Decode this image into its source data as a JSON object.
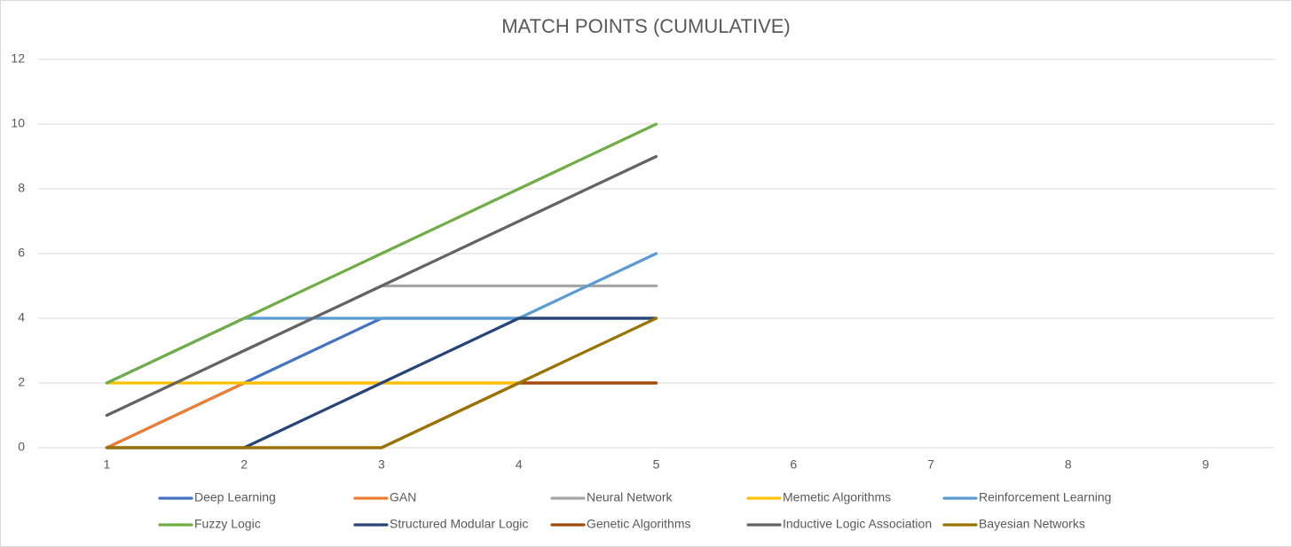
{
  "chart_data": {
    "type": "line",
    "title": "MATCH POINTS (CUMULATIVE)",
    "categories": [
      1,
      2,
      3,
      4,
      5,
      6,
      7,
      8,
      9
    ],
    "ylim": [
      0,
      12
    ],
    "yticks": [
      0,
      2,
      4,
      6,
      8,
      10,
      12
    ],
    "grid": true,
    "legend": "bottom",
    "series": [
      {
        "name": "Deep Learning",
        "color": "#4472c4",
        "values": [
          0,
          2,
          4,
          4,
          4,
          null,
          null,
          null,
          null
        ]
      },
      {
        "name": "GAN",
        "color": "#ed7d31",
        "values": [
          0,
          2,
          2,
          2,
          2,
          null,
          null,
          null,
          null
        ]
      },
      {
        "name": "Neural Network",
        "color": "#a5a5a5",
        "values": [
          1,
          3,
          5,
          5,
          5,
          null,
          null,
          null,
          null
        ]
      },
      {
        "name": "Memetic Algorithms",
        "color": "#ffc000",
        "values": [
          2,
          2,
          2,
          2,
          2,
          null,
          null,
          null,
          null
        ]
      },
      {
        "name": "Reinforcement Learning",
        "color": "#5b9bd5",
        "values": [
          2,
          4,
          4,
          4,
          6,
          null,
          null,
          null,
          null
        ]
      },
      {
        "name": "Fuzzy Logic",
        "color": "#70ad47",
        "values": [
          2,
          4,
          6,
          8,
          10,
          null,
          null,
          null,
          null
        ]
      },
      {
        "name": "Structured Modular Logic",
        "color": "#264478",
        "values": [
          0,
          0,
          2,
          4,
          4,
          null,
          null,
          null,
          null
        ]
      },
      {
        "name": "Genetic Algorithms",
        "color": "#9e480e",
        "values": [
          0,
          0,
          0,
          2,
          2,
          null,
          null,
          null,
          null
        ]
      },
      {
        "name": "Inductive Logic Association",
        "color": "#636363",
        "values": [
          1,
          3,
          5,
          7,
          9,
          null,
          null,
          null,
          null
        ]
      },
      {
        "name": "Bayesian Networks",
        "color": "#997300",
        "values": [
          0,
          0,
          0,
          2,
          4,
          null,
          null,
          null,
          null
        ]
      }
    ]
  }
}
